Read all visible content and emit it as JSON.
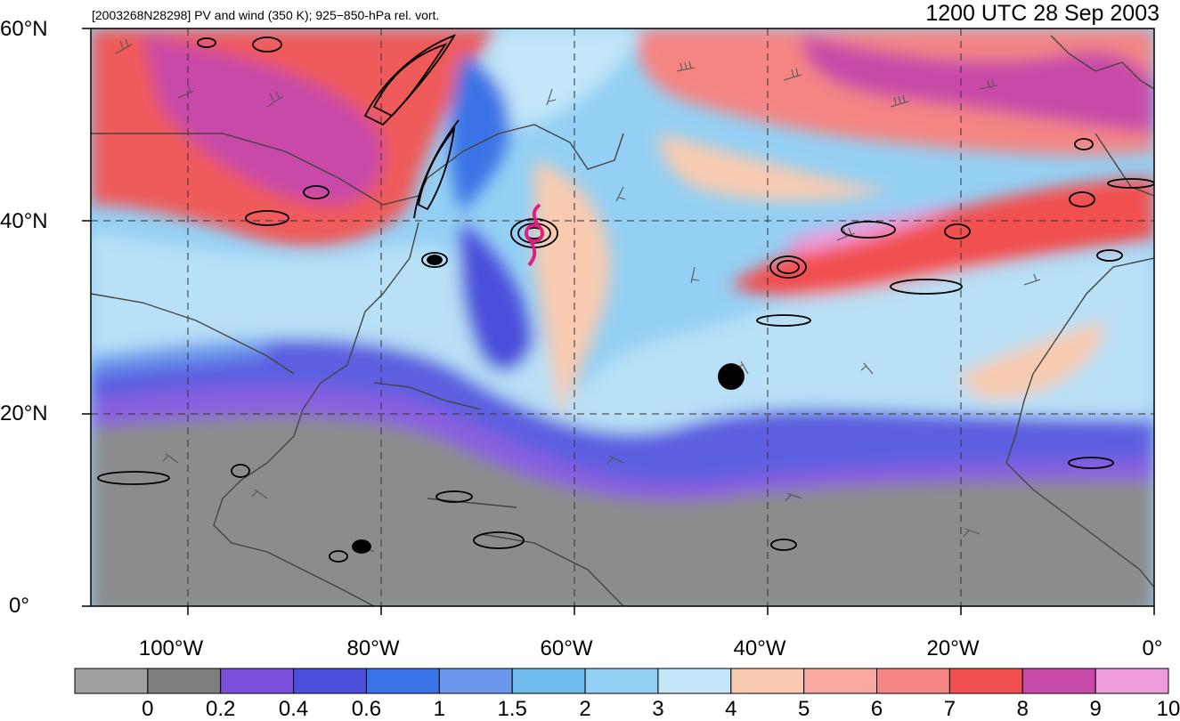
{
  "header": {
    "description": "[2003268N28298] PV and wind (350 K); 925−850-hPa rel. vort.",
    "valid_time": "1200 UTC 28 Sep 2003"
  },
  "latitude_labels": [
    "60°N",
    "40°N",
    "20°N",
    "0°"
  ],
  "longitude_labels": [
    "100°W",
    "80°W",
    "60°W",
    "40°W",
    "20°W",
    "0°"
  ],
  "colorbar": {
    "labels": [
      "0",
      "0.2",
      "0.4",
      "0.6",
      "1",
      "1.5",
      "2",
      "3",
      "4",
      "5",
      "6",
      "7",
      "8",
      "9",
      "10"
    ],
    "colors": [
      "#a0a0a0",
      "#7d7d7d",
      "#7b4fdc",
      "#4b4fdc",
      "#3a73e6",
      "#6b97ec",
      "#6ebbec",
      "#94d0f4",
      "#c3e6f8",
      "#f8cbb0",
      "#f7a9a0",
      "#f58583",
      "#f25050",
      "#c84aa8",
      "#ee9bdc"
    ]
  },
  "colors": {
    "storm_symbol": "#e0207f",
    "low_pv": "#8c8c8c",
    "mid_pv": "#8fc7ef",
    "high_pv": "#f25050"
  },
  "map": {
    "domain": "North Atlantic, 0°–60°N, 110°W–0°",
    "storm_marker": "tropical-cyclone-icon"
  }
}
